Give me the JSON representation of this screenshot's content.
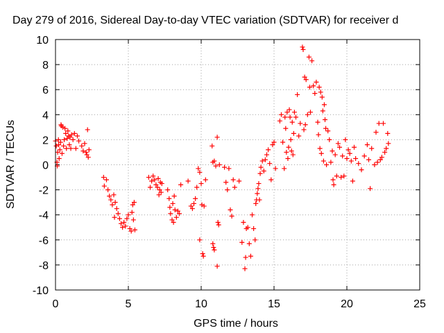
{
  "chart_data": {
    "type": "scatter",
    "title": "Day 279 of 2016, Sidereal Day-to-day VTEC variation (SDTVAR) for receiver d",
    "xlabel": "GPS time / hours",
    "ylabel": "SDTVAR / TECUs",
    "xlim": [
      0,
      25
    ],
    "ylim": [
      -10,
      10
    ],
    "xticks": [
      "0",
      "5",
      "10",
      "15",
      "20",
      "25"
    ],
    "yticks": [
      "10",
      "8",
      "6",
      "4",
      "2",
      "0",
      "-2",
      "-4",
      "-6",
      "-8",
      "-10"
    ],
    "grid": true,
    "marker": "+",
    "color": "#ff0000",
    "series": [
      {
        "name": "SDTVAR",
        "points": [
          [
            0.0,
            1.9
          ],
          [
            0.05,
            1.5
          ],
          [
            0.1,
            0.2
          ],
          [
            0.12,
            -0.1
          ],
          [
            0.15,
            1.0
          ],
          [
            0.2,
            2.0
          ],
          [
            0.22,
            1.6
          ],
          [
            0.25,
            0.5
          ],
          [
            0.3,
            1.2
          ],
          [
            0.35,
            1.8
          ],
          [
            0.38,
            3.2
          ],
          [
            0.4,
            3.1
          ],
          [
            0.45,
            0.9
          ],
          [
            0.5,
            3.0
          ],
          [
            0.55,
            1.5
          ],
          [
            0.6,
            2.0
          ],
          [
            0.65,
            2.9
          ],
          [
            0.7,
            2.5
          ],
          [
            0.75,
            1.3
          ],
          [
            0.8,
            2.1
          ],
          [
            0.85,
            2.7
          ],
          [
            0.9,
            2.3
          ],
          [
            0.95,
            1.6
          ],
          [
            1.0,
            2.2
          ],
          [
            1.05,
            1.3
          ],
          [
            1.1,
            2.4
          ],
          [
            1.2,
            2.0
          ],
          [
            1.3,
            2.5
          ],
          [
            1.4,
            1.3
          ],
          [
            1.5,
            2.3
          ],
          [
            1.6,
            1.9
          ],
          [
            1.8,
            1.5
          ],
          [
            1.9,
            1.1
          ],
          [
            2.0,
            1.7
          ],
          [
            2.1,
            1.0
          ],
          [
            2.15,
            0.8
          ],
          [
            2.2,
            2.8
          ],
          [
            2.25,
            0.6
          ],
          [
            2.3,
            1.2
          ],
          [
            3.3,
            -1.0
          ],
          [
            3.35,
            -1.7
          ],
          [
            3.5,
            -1.2
          ],
          [
            3.6,
            -2.0
          ],
          [
            3.7,
            -2.5
          ],
          [
            3.8,
            -2.8
          ],
          [
            3.9,
            -3.2
          ],
          [
            4.0,
            -2.4
          ],
          [
            4.05,
            -4.2
          ],
          [
            4.1,
            -3.0
          ],
          [
            4.2,
            -3.5
          ],
          [
            4.3,
            -3.9
          ],
          [
            4.4,
            -4.3
          ],
          [
            4.5,
            -4.7
          ],
          [
            4.6,
            -5.0
          ],
          [
            4.7,
            -4.6
          ],
          [
            4.8,
            -4.9
          ],
          [
            4.9,
            -4.3
          ],
          [
            5.0,
            -4.0
          ],
          [
            5.1,
            -5.1
          ],
          [
            5.2,
            -5.3
          ],
          [
            5.25,
            -3.8
          ],
          [
            5.3,
            -3.2
          ],
          [
            5.35,
            -4.4
          ],
          [
            5.4,
            -3.0
          ],
          [
            5.45,
            -5.2
          ],
          [
            6.4,
            -1.0
          ],
          [
            6.5,
            -1.8
          ],
          [
            6.6,
            -1.3
          ],
          [
            6.7,
            -0.9
          ],
          [
            6.8,
            -1.2
          ],
          [
            6.9,
            -1.6
          ],
          [
            7.0,
            -1.8
          ],
          [
            7.05,
            -1.1
          ],
          [
            7.1,
            -2.4
          ],
          [
            7.15,
            -2.0
          ],
          [
            7.2,
            -1.4
          ],
          [
            7.25,
            -2.2
          ],
          [
            7.3,
            -1.5
          ],
          [
            7.7,
            -2.0
          ],
          [
            7.8,
            -2.7
          ],
          [
            7.85,
            -3.4
          ],
          [
            7.9,
            -3.9
          ],
          [
            8.0,
            -4.4
          ],
          [
            8.05,
            -3.1
          ],
          [
            8.1,
            -4.6
          ],
          [
            8.15,
            -2.5
          ],
          [
            8.2,
            -3.6
          ],
          [
            8.3,
            -4.2
          ],
          [
            8.4,
            -3.7
          ],
          [
            8.5,
            -3.9
          ],
          [
            8.6,
            -1.6
          ],
          [
            9.1,
            -1.3
          ],
          [
            9.3,
            -3.3
          ],
          [
            9.4,
            -3.5
          ],
          [
            9.5,
            -3.1
          ],
          [
            9.6,
            -2.7
          ],
          [
            9.7,
            -1.8
          ],
          [
            9.8,
            -0.3
          ],
          [
            9.9,
            -0.6
          ],
          [
            10.0,
            -1.5
          ],
          [
            10.05,
            -3.2
          ],
          [
            9.9,
            -6.0
          ],
          [
            10.1,
            -7.1
          ],
          [
            10.15,
            -7.3
          ],
          [
            10.2,
            -3.3
          ],
          [
            10.3,
            -1.2
          ],
          [
            10.8,
            -6.3
          ],
          [
            10.85,
            -6.6
          ],
          [
            10.9,
            -6.8
          ],
          [
            10.9,
            0.3
          ],
          [
            11.0,
            -0.1
          ],
          [
            11.1,
            -8.1
          ],
          [
            11.1,
            2.2
          ],
          [
            11.15,
            -4.6
          ],
          [
            11.2,
            -4.8
          ],
          [
            11.25,
            0.0
          ],
          [
            10.75,
            1.5
          ],
          [
            10.8,
            0.2
          ],
          [
            11.6,
            -0.2
          ],
          [
            11.7,
            -1.4
          ],
          [
            11.8,
            -2.0
          ],
          [
            11.9,
            -0.3
          ],
          [
            12.0,
            -3.6
          ],
          [
            12.1,
            -4.1
          ],
          [
            12.2,
            -1.2
          ],
          [
            12.3,
            -1.8
          ],
          [
            12.6,
            -1.3
          ],
          [
            12.8,
            -6.2
          ],
          [
            12.9,
            -4.6
          ],
          [
            13.0,
            -8.3
          ],
          [
            13.05,
            -7.4
          ],
          [
            13.1,
            -5.1
          ],
          [
            13.2,
            -5.0
          ],
          [
            13.3,
            -6.3
          ],
          [
            13.4,
            -7.3
          ],
          [
            13.5,
            -4.0
          ],
          [
            13.6,
            -5.1
          ],
          [
            13.7,
            -6.0
          ],
          [
            13.75,
            -3.1
          ],
          [
            13.8,
            -2.8
          ],
          [
            13.85,
            -2.3
          ],
          [
            13.9,
            -1.9
          ],
          [
            13.95,
            -1.5
          ],
          [
            14.0,
            -2.8
          ],
          [
            14.05,
            -0.7
          ],
          [
            14.1,
            -0.2
          ],
          [
            14.2,
            0.3
          ],
          [
            14.3,
            -0.5
          ],
          [
            14.4,
            0.4
          ],
          [
            14.5,
            0.8
          ],
          [
            14.6,
            1.2
          ],
          [
            14.7,
            0.1
          ],
          [
            14.8,
            -1.2
          ],
          [
            14.9,
            1.6
          ],
          [
            15.0,
            1.8
          ],
          [
            15.1,
            -0.3
          ],
          [
            15.4,
            3.5
          ],
          [
            15.5,
            4.0
          ],
          [
            15.6,
            1.8
          ],
          [
            15.7,
            -0.3
          ],
          [
            15.75,
            3.8
          ],
          [
            15.8,
            2.9
          ],
          [
            15.85,
            1.0
          ],
          [
            15.9,
            4.2
          ],
          [
            15.95,
            0.5
          ],
          [
            16.0,
            1.4
          ],
          [
            16.05,
            4.4
          ],
          [
            16.1,
            3.8
          ],
          [
            16.15,
            2.0
          ],
          [
            16.2,
            1.1
          ],
          [
            16.25,
            3.4
          ],
          [
            16.3,
            0.8
          ],
          [
            16.35,
            2.5
          ],
          [
            16.4,
            4.2
          ],
          [
            16.5,
            3.8
          ],
          [
            16.6,
            5.6
          ],
          [
            16.7,
            2.3
          ],
          [
            16.8,
            3.3
          ],
          [
            16.95,
            9.4
          ],
          [
            17.0,
            9.2
          ],
          [
            17.05,
            2.8
          ],
          [
            17.1,
            7.0
          ],
          [
            17.15,
            3.2
          ],
          [
            17.2,
            6.8
          ],
          [
            17.3,
            4.0
          ],
          [
            17.4,
            8.6
          ],
          [
            17.45,
            6.2
          ],
          [
            17.5,
            4.2
          ],
          [
            17.6,
            8.3
          ],
          [
            17.7,
            6.3
          ],
          [
            17.8,
            5.7
          ],
          [
            17.9,
            6.6
          ],
          [
            18.0,
            3.4
          ],
          [
            18.05,
            2.4
          ],
          [
            18.1,
            6.2
          ],
          [
            18.15,
            1.3
          ],
          [
            18.2,
            5.8
          ],
          [
            18.25,
            0.9
          ],
          [
            18.3,
            5.4
          ],
          [
            18.35,
            4.3
          ],
          [
            18.4,
            0.3
          ],
          [
            18.45,
            4.8
          ],
          [
            18.5,
            3.6
          ],
          [
            18.55,
            2.9
          ],
          [
            18.6,
            0.0
          ],
          [
            18.7,
            2.7
          ],
          [
            18.8,
            2.0
          ],
          [
            18.9,
            0.2
          ],
          [
            19.0,
            1.1
          ],
          [
            19.05,
            -1.2
          ],
          [
            19.1,
            -1.6
          ],
          [
            19.2,
            0.8
          ],
          [
            19.3,
            -0.9
          ],
          [
            19.4,
            1.7
          ],
          [
            19.5,
            1.4
          ],
          [
            19.6,
            -1.0
          ],
          [
            19.7,
            0.7
          ],
          [
            19.8,
            -0.9
          ],
          [
            19.9,
            2.0
          ],
          [
            20.0,
            0.5
          ],
          [
            20.1,
            1.2
          ],
          [
            20.2,
            0.9
          ],
          [
            20.3,
            0.3
          ],
          [
            20.4,
            -1.3
          ],
          [
            20.5,
            1.4
          ],
          [
            20.6,
            0.5
          ],
          [
            20.8,
            0.1
          ],
          [
            21.0,
            -0.4
          ],
          [
            21.2,
            0.7
          ],
          [
            21.4,
            1.6
          ],
          [
            21.5,
            0.4
          ],
          [
            21.6,
            -1.9
          ],
          [
            21.7,
            1.3
          ],
          [
            21.9,
            0.0
          ],
          [
            22.0,
            2.6
          ],
          [
            22.1,
            0.2
          ],
          [
            22.2,
            3.3
          ],
          [
            22.3,
            0.4
          ],
          [
            22.4,
            0.6
          ],
          [
            22.5,
            3.3
          ],
          [
            22.6,
            1.0
          ],
          [
            22.7,
            1.3
          ],
          [
            22.8,
            2.5
          ],
          [
            22.85,
            1.7
          ]
        ]
      }
    ]
  }
}
